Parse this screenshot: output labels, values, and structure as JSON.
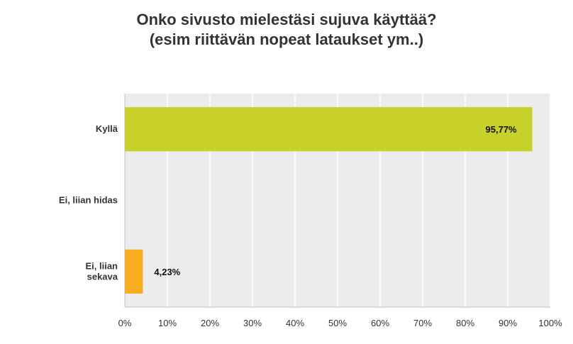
{
  "chart_data": {
    "type": "bar",
    "orientation": "horizontal",
    "title": [
      "Onko sivusto mielestäsi sujuva käyttää?",
      "(esim riittävän nopeat lataukset ym..)"
    ],
    "categories": [
      {
        "label": [
          "Kyllä"
        ],
        "value": 95.77,
        "value_label": "95,77%",
        "color": "#c8d12a"
      },
      {
        "label": [
          "Ei, liian hidas"
        ],
        "value": 0,
        "value_label": "",
        "color": "#f5a623"
      },
      {
        "label": [
          "Ei, liian",
          "sekava"
        ],
        "value": 4.23,
        "value_label": "4,23%",
        "color": "#f7ad1f"
      }
    ],
    "xlim": [
      0,
      100
    ],
    "x_ticks": [
      "0%",
      "10%",
      "20%",
      "30%",
      "40%",
      "50%",
      "60%",
      "70%",
      "80%",
      "90%",
      "100%"
    ],
    "grid": true,
    "plot_background": "#ececec",
    "grid_color": "#ffffff"
  }
}
